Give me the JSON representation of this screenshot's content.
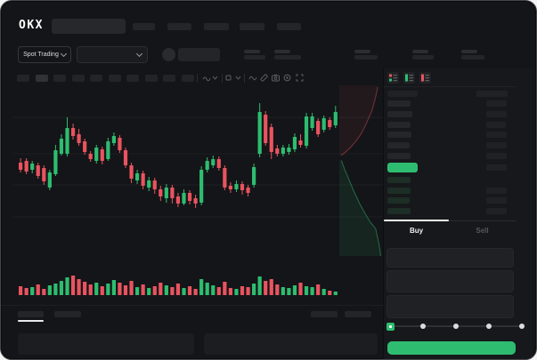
{
  "app": {
    "brand": "OKX"
  },
  "header": {
    "market_selector": "Spot Trading"
  },
  "colors": {
    "up": "#2ebd70",
    "down": "#e8545f",
    "bid_row": "#1c2e25",
    "ask_bar": "#242629",
    "amount_bar": "#1f2225",
    "header_bar": "#202225"
  },
  "toolbar": {
    "timeframe_count": 10,
    "active_index": 1
  },
  "trade_panel": {
    "buy_tab": "Buy",
    "sell_tab": "Sell"
  },
  "slider": {
    "stops": 5,
    "active_stop": 0
  },
  "orderbook": {
    "header": {
      "price_w": 34,
      "amount_w": 35
    },
    "asks": [
      [
        26,
        23
      ],
      [
        28,
        23
      ],
      [
        26,
        22
      ],
      [
        27,
        23
      ],
      [
        25,
        23
      ],
      [
        26,
        23
      ]
    ],
    "last_price_side": "up",
    "last_amount_w": 23,
    "bids": [
      [
        26,
        0
      ],
      [
        26,
        23
      ],
      [
        25,
        23
      ],
      [
        26,
        23
      ]
    ]
  },
  "chart_data": {
    "type": "candlestick",
    "title": "",
    "note": "greeked OKX spot chart; values in relative price units, y = 290 - price (px)",
    "ylim": [
      50,
      185
    ],
    "gridlines_price": [
      159,
      118,
      83,
      47
    ],
    "candles": [
      [
        108,
        113,
        97,
        100
      ],
      [
        110,
        113,
        95,
        98
      ],
      [
        100,
        110,
        96,
        107
      ],
      [
        105,
        108,
        90,
        93
      ],
      [
        102,
        105,
        83,
        87
      ],
      [
        80,
        100,
        77,
        97
      ],
      [
        95,
        128,
        93,
        122
      ],
      [
        118,
        140,
        116,
        135
      ],
      [
        118,
        159,
        115,
        147
      ],
      [
        147,
        152,
        134,
        138
      ],
      [
        140,
        146,
        127,
        130
      ],
      [
        132,
        135,
        117,
        120
      ],
      [
        118,
        121,
        109,
        112
      ],
      [
        110,
        128,
        107,
        125
      ],
      [
        123,
        126,
        106,
        110
      ],
      [
        112,
        136,
        110,
        132
      ],
      [
        130,
        142,
        127,
        138
      ],
      [
        136,
        139,
        119,
        122
      ],
      [
        122,
        125,
        102,
        105
      ],
      [
        105,
        108,
        85,
        90
      ],
      [
        88,
        100,
        84,
        96
      ],
      [
        96,
        99,
        78,
        82
      ],
      [
        80,
        92,
        76,
        88
      ],
      [
        88,
        91,
        73,
        78
      ],
      [
        78,
        82,
        65,
        70
      ],
      [
        68,
        84,
        63,
        80
      ],
      [
        80,
        83,
        62,
        68
      ],
      [
        70,
        74,
        58,
        62
      ],
      [
        62,
        78,
        60,
        74
      ],
      [
        74,
        77,
        61,
        65
      ],
      [
        68,
        72,
        57,
        62
      ],
      [
        63,
        104,
        60,
        100
      ],
      [
        100,
        114,
        97,
        110
      ],
      [
        105,
        116,
        102,
        112
      ],
      [
        112,
        115,
        99,
        102
      ],
      [
        102,
        105,
        77,
        80
      ],
      [
        82,
        86,
        74,
        78
      ],
      [
        78,
        88,
        75,
        84
      ],
      [
        84,
        87,
        72,
        77
      ],
      [
        80,
        83,
        70,
        74
      ],
      [
        83,
        107,
        80,
        103
      ],
      [
        118,
        175,
        114,
        165
      ],
      [
        162,
        166,
        127,
        130
      ],
      [
        148,
        152,
        112,
        120
      ],
      [
        124,
        128,
        115,
        118
      ],
      [
        118,
        128,
        115,
        125
      ],
      [
        120,
        129,
        117,
        125
      ],
      [
        123,
        141,
        120,
        137
      ],
      [
        133,
        140,
        125,
        128
      ],
      [
        127,
        164,
        124,
        160
      ],
      [
        147,
        164,
        144,
        160
      ],
      [
        155,
        158,
        137,
        140
      ],
      [
        145,
        161,
        142,
        158
      ],
      [
        156,
        159,
        145,
        148
      ],
      [
        150,
        172,
        147,
        165
      ]
    ],
    "volume": [
      10,
      8,
      9,
      12,
      7,
      11,
      13,
      16,
      20,
      22,
      18,
      15,
      12,
      14,
      10,
      13,
      17,
      14,
      11,
      16,
      9,
      12,
      8,
      10,
      14,
      11,
      9,
      13,
      8,
      10,
      7,
      18,
      14,
      11,
      9,
      15,
      8,
      7,
      10,
      9,
      13,
      21,
      16,
      18,
      12,
      9,
      8,
      11,
      14,
      10,
      9,
      12,
      7,
      5,
      4
    ],
    "depth": {
      "asks": [
        [
          0.9,
          0.01
        ],
        [
          0.84,
          0.08
        ],
        [
          0.76,
          0.15
        ],
        [
          0.64,
          0.22
        ],
        [
          0.52,
          0.28
        ],
        [
          0.38,
          0.33
        ],
        [
          0.24,
          0.37
        ],
        [
          0.1,
          0.4
        ],
        [
          0.04,
          0.41
        ]
      ],
      "bids": [
        [
          0.05,
          0.44
        ],
        [
          0.12,
          0.49
        ],
        [
          0.22,
          0.55
        ],
        [
          0.34,
          0.62
        ],
        [
          0.47,
          0.69
        ],
        [
          0.6,
          0.75
        ],
        [
          0.72,
          0.8
        ],
        [
          0.85,
          0.84
        ],
        [
          0.93,
          0.93
        ],
        [
          0.97,
          1.0
        ]
      ]
    }
  }
}
